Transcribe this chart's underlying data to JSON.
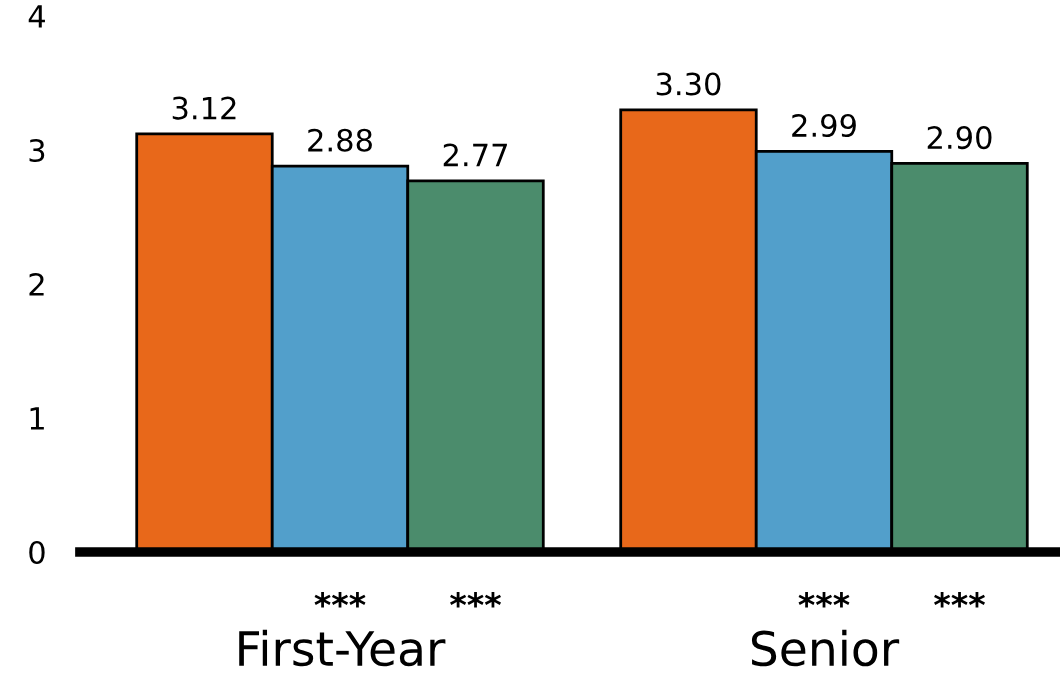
{
  "chart_data": {
    "type": "bar",
    "categories": [
      "First-Year",
      "Senior"
    ],
    "series": [
      {
        "color": "#e8681a",
        "values": [
          3.12,
          3.3
        ],
        "value_labels": [
          "3.12",
          "3.30"
        ]
      },
      {
        "color": "#529fcb",
        "values": [
          2.88,
          2.99
        ],
        "value_labels": [
          "2.88",
          "2.99"
        ]
      },
      {
        "color": "#4b8c6c",
        "values": [
          2.77,
          2.9
        ],
        "value_labels": [
          "2.77",
          "2.90"
        ]
      }
    ],
    "ylim": [
      0,
      4
    ],
    "yticks": [
      0,
      1,
      2,
      3,
      4
    ],
    "grid": false,
    "legend": false,
    "annotations": [
      "***",
      "***",
      "***",
      "***"
    ]
  }
}
